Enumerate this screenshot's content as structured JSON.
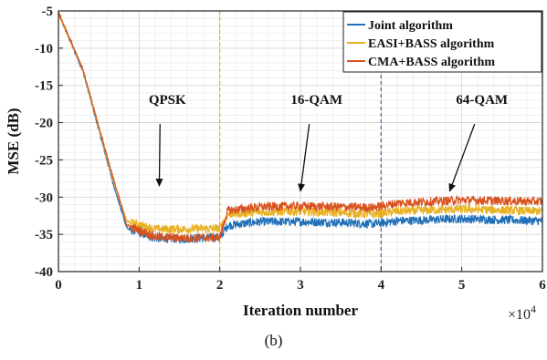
{
  "chart_data": {
    "type": "line",
    "xlabel": "Iteration number",
    "ylabel": "MSE (dB)",
    "x_multiplier": "×10",
    "x_multiplier_exp": "4",
    "xlim": [
      0,
      6
    ],
    "ylim": [
      -40,
      -5
    ],
    "xticks": [
      0,
      1,
      2,
      3,
      4,
      5,
      6
    ],
    "yticks": [
      -5,
      -10,
      -15,
      -20,
      -25,
      -30,
      -35,
      -40
    ],
    "grid": true,
    "legend_position": "top-right",
    "series": [
      {
        "name": "Joint algorithm",
        "color": "#1f6fb8",
        "points": [
          [
            0,
            -5.3
          ],
          [
            0.3,
            -13
          ],
          [
            0.5,
            -21
          ],
          [
            0.7,
            -29
          ],
          [
            0.85,
            -34.2
          ],
          [
            1.2,
            -35.5
          ],
          [
            1.5,
            -35.6
          ],
          [
            2.0,
            -35.4
          ],
          [
            2.1,
            -33.8
          ],
          [
            2.5,
            -33.3
          ],
          [
            3.0,
            -33.3
          ],
          [
            3.5,
            -33.4
          ],
          [
            3.9,
            -33.6
          ],
          [
            4.2,
            -33.2
          ],
          [
            5.0,
            -32.9
          ],
          [
            6.0,
            -33.2
          ]
        ],
        "noise_amplitude": 0.6
      },
      {
        "name": "EASI+BASS algorithm",
        "color": "#e8b021",
        "points": [
          [
            0,
            -5.4
          ],
          [
            0.3,
            -12.8
          ],
          [
            0.5,
            -20.7
          ],
          [
            0.7,
            -28.5
          ],
          [
            0.85,
            -33.3
          ],
          [
            1.2,
            -34.3
          ],
          [
            1.5,
            -34.3
          ],
          [
            2.0,
            -34.2
          ],
          [
            2.1,
            -32.3
          ],
          [
            2.5,
            -32.0
          ],
          [
            3.0,
            -31.9
          ],
          [
            3.5,
            -32.1
          ],
          [
            3.9,
            -32.3
          ],
          [
            4.2,
            -31.9
          ],
          [
            5.0,
            -31.6
          ],
          [
            6.0,
            -31.9
          ]
        ],
        "noise_amplitude": 0.6
      },
      {
        "name": "CMA+BASS algorithm",
        "color": "#d9521e",
        "points": [
          [
            0,
            -5.2
          ],
          [
            0.3,
            -12.7
          ],
          [
            0.5,
            -20.5
          ],
          [
            0.7,
            -28.2
          ],
          [
            0.85,
            -33.8
          ],
          [
            1.2,
            -35.3
          ],
          [
            1.5,
            -35.5
          ],
          [
            2.0,
            -35.4
          ],
          [
            2.1,
            -31.8
          ],
          [
            2.5,
            -31.3
          ],
          [
            3.0,
            -31.2
          ],
          [
            3.5,
            -31.3
          ],
          [
            3.9,
            -31.4
          ],
          [
            4.2,
            -30.8
          ],
          [
            5.0,
            -30.4
          ],
          [
            6.0,
            -30.6
          ]
        ],
        "noise_amplitude": 0.6
      }
    ],
    "vlines": [
      {
        "x": 2,
        "color": "#e8b021",
        "style": "dashed"
      },
      {
        "x": 4,
        "color": "#7e3f98",
        "style": "dashed"
      }
    ],
    "annotations": [
      {
        "text": "QPSK",
        "label_x": 1.35,
        "label_y": -17.5,
        "arrow_to_x": 1.25,
        "arrow_to_y": -28.5
      },
      {
        "text": "16-QAM",
        "label_x": 3.2,
        "label_y": -17.5,
        "arrow_to_x": 3.0,
        "arrow_to_y": -29.2
      },
      {
        "text": "64-QAM",
        "label_x": 5.25,
        "label_y": -17.5,
        "arrow_to_x": 4.85,
        "arrow_to_y": -29.2
      }
    ]
  },
  "caption": "(b)"
}
